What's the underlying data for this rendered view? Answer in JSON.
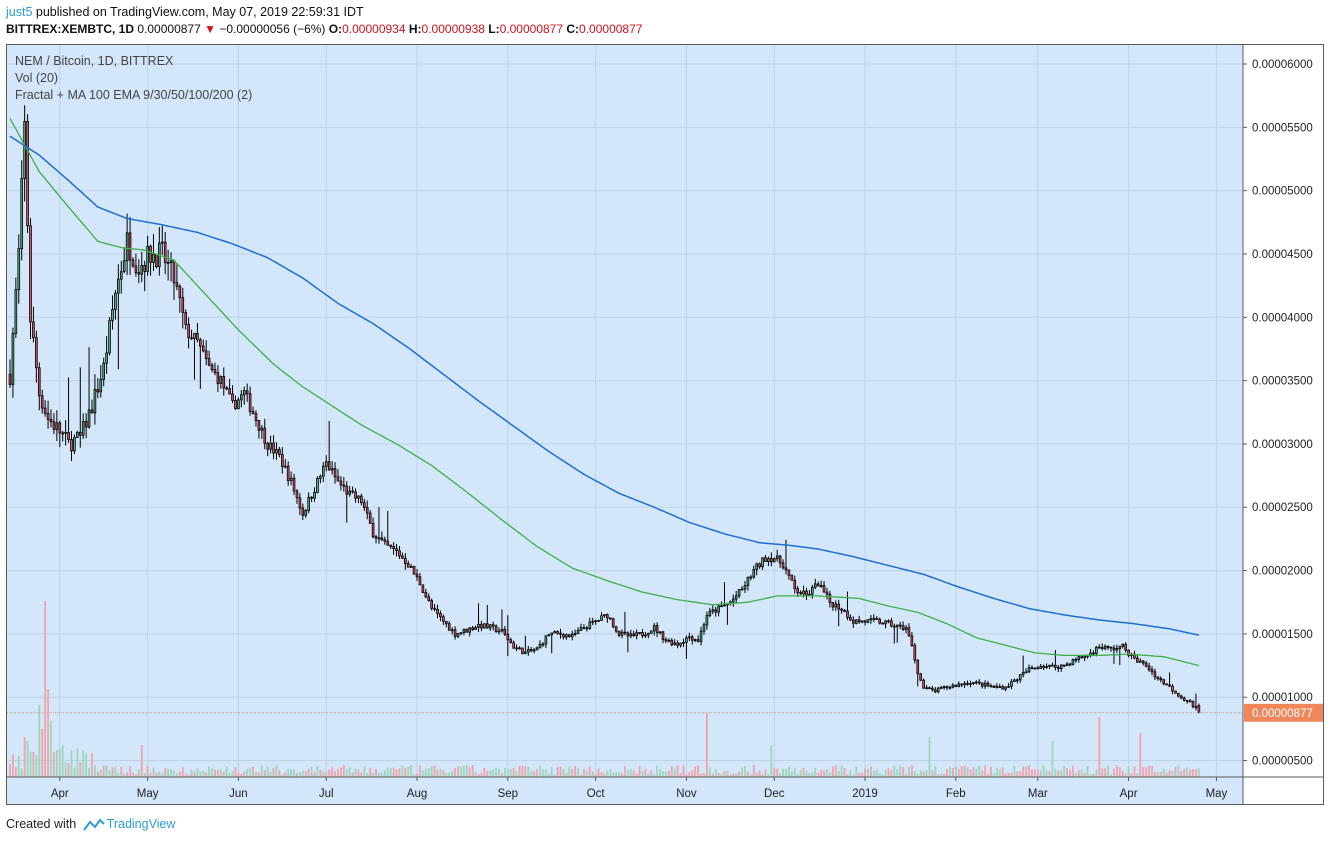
{
  "header": {
    "user": "just5",
    "published_text": "published on TradingView.com, May 07, 2019 22:59:31 IDT",
    "symbol": "BITTREX:XEMBTC, 1D",
    "last": "0.00000877",
    "change_arrow": "▼",
    "change": "−0.00000056 (−6%)",
    "o_label": "O:",
    "o": "0.00000934",
    "h_label": "H:",
    "h": "0.00000938",
    "l_label": "L:",
    "l": "0.00000877",
    "c_label": "C:",
    "c": "0.00000877"
  },
  "legend": {
    "series": "NEM / Bitcoin, 1D, BITTREX",
    "volume": "Vol (20)",
    "indicator": "Fractal + MA 100 EMA 9/30/50/100/200 (2)"
  },
  "footer": {
    "prefix": "Created with",
    "brand": "TradingView"
  },
  "colors": {
    "background": "#d3e6fa",
    "up": "#53b987",
    "down": "#eb4d5c",
    "candle_outline": "#000000",
    "ma_green": "#3fae49",
    "ma_blue": "#1e6fcf",
    "price_tag": "#f0875a"
  },
  "chart_data": {
    "type": "candlestick",
    "title": "NEM / Bitcoin, 1D, BITTREX",
    "ylim": [
      3.7e-06,
      6.15e-05
    ],
    "yticks": [
      "0.00000500",
      "0.00001000",
      "0.00001500",
      "0.00002000",
      "0.00002500",
      "0.00003000",
      "0.00003500",
      "0.00004000",
      "0.00004500",
      "0.00005000",
      "0.00005500",
      "0.00006000"
    ],
    "ytick_values": [
      5e-06,
      1e-05,
      1.5e-05,
      2e-05,
      2.5e-05,
      3e-05,
      3.5e-05,
      4e-05,
      4.5e-05,
      5e-05,
      5.5e-05,
      6e-05
    ],
    "xaxis_months": [
      {
        "label": "Apr",
        "day": 17
      },
      {
        "label": "May",
        "day": 47
      },
      {
        "label": "Jun",
        "day": 78
      },
      {
        "label": "Jul",
        "day": 108
      },
      {
        "label": "Aug",
        "day": 139
      },
      {
        "label": "Sep",
        "day": 170
      },
      {
        "label": "Oct",
        "day": 200
      },
      {
        "label": "Nov",
        "day": 231
      },
      {
        "label": "Dec",
        "day": 261
      },
      {
        "label": "2019",
        "day": 292
      },
      {
        "label": "Feb",
        "day": 323
      },
      {
        "label": "Mar",
        "day": 351
      },
      {
        "label": "Apr",
        "day": 382
      },
      {
        "label": "May",
        "day": 412
      }
    ],
    "total_days": 418,
    "last_price": "0.00000877",
    "price_anchors": [
      [
        0,
        3.55e-05
      ],
      [
        3,
        4.5e-05
      ],
      [
        5,
        5.5e-05
      ],
      [
        7,
        4e-05
      ],
      [
        10,
        3.4e-05
      ],
      [
        13,
        3.2e-05
      ],
      [
        17,
        3.1e-05
      ],
      [
        20,
        3e-05
      ],
      [
        24,
        3.05e-05
      ],
      [
        28,
        3.3e-05
      ],
      [
        32,
        3.6e-05
      ],
      [
        36,
        4.2e-05
      ],
      [
        40,
        4.6e-05
      ],
      [
        44,
        4.4e-05
      ],
      [
        48,
        4.5e-05
      ],
      [
        52,
        4.5e-05
      ],
      [
        56,
        4.3e-05
      ],
      [
        60,
        3.9e-05
      ],
      [
        64,
        3.8e-05
      ],
      [
        68,
        3.6e-05
      ],
      [
        72,
        3.5e-05
      ],
      [
        76,
        3.3e-05
      ],
      [
        80,
        3.4e-05
      ],
      [
        84,
        3.2e-05
      ],
      [
        88,
        3e-05
      ],
      [
        92,
        2.9e-05
      ],
      [
        96,
        2.7e-05
      ],
      [
        100,
        2.45e-05
      ],
      [
        104,
        2.65e-05
      ],
      [
        108,
        2.85e-05
      ],
      [
        112,
        2.7e-05
      ],
      [
        116,
        2.6e-05
      ],
      [
        120,
        2.55e-05
      ],
      [
        124,
        2.3e-05
      ],
      [
        128,
        2.2e-05
      ],
      [
        132,
        2.15e-05
      ],
      [
        136,
        2.05e-05
      ],
      [
        140,
        1.9e-05
      ],
      [
        144,
        1.7e-05
      ],
      [
        148,
        1.6e-05
      ],
      [
        152,
        1.5e-05
      ],
      [
        156,
        1.53e-05
      ],
      [
        160,
        1.57e-05
      ],
      [
        164,
        1.55e-05
      ],
      [
        168,
        1.52e-05
      ],
      [
        172,
        1.4e-05
      ],
      [
        176,
        1.35e-05
      ],
      [
        180,
        1.38e-05
      ],
      [
        184,
        1.5e-05
      ],
      [
        188,
        1.5e-05
      ],
      [
        192,
        1.48e-05
      ],
      [
        196,
        1.55e-05
      ],
      [
        200,
        1.6e-05
      ],
      [
        204,
        1.65e-05
      ],
      [
        208,
        1.5e-05
      ],
      [
        212,
        1.48e-05
      ],
      [
        216,
        1.5e-05
      ],
      [
        220,
        1.55e-05
      ],
      [
        224,
        1.45e-05
      ],
      [
        228,
        1.42e-05
      ],
      [
        232,
        1.48e-05
      ],
      [
        235,
        1.45e-05
      ],
      [
        238,
        1.65e-05
      ],
      [
        242,
        1.7e-05
      ],
      [
        246,
        1.75e-05
      ],
      [
        250,
        1.85e-05
      ],
      [
        254,
        2e-05
      ],
      [
        258,
        2.1e-05
      ],
      [
        261,
        2.1e-05
      ],
      [
        264,
        2.05e-05
      ],
      [
        268,
        1.85e-05
      ],
      [
        272,
        1.8e-05
      ],
      [
        276,
        1.9e-05
      ],
      [
        280,
        1.75e-05
      ],
      [
        284,
        1.7e-05
      ],
      [
        288,
        1.6e-05
      ],
      [
        292,
        1.6e-05
      ],
      [
        296,
        1.6e-05
      ],
      [
        300,
        1.58e-05
      ],
      [
        304,
        1.55e-05
      ],
      [
        306,
        1.55e-05
      ],
      [
        308,
        1.4e-05
      ],
      [
        310,
        1.2e-05
      ],
      [
        312,
        1.07e-05
      ],
      [
        316,
        1.05e-05
      ],
      [
        320,
        1.08e-05
      ],
      [
        324,
        1.1e-05
      ],
      [
        328,
        1.12e-05
      ],
      [
        332,
        1.1e-05
      ],
      [
        336,
        1.08e-05
      ],
      [
        340,
        1.08e-05
      ],
      [
        344,
        1.15e-05
      ],
      [
        348,
        1.22e-05
      ],
      [
        352,
        1.25e-05
      ],
      [
        356,
        1.24e-05
      ],
      [
        360,
        1.25e-05
      ],
      [
        364,
        1.3e-05
      ],
      [
        368,
        1.33e-05
      ],
      [
        372,
        1.4e-05
      ],
      [
        376,
        1.38e-05
      ],
      [
        380,
        1.4e-05
      ],
      [
        384,
        1.3e-05
      ],
      [
        388,
        1.25e-05
      ],
      [
        392,
        1.15e-05
      ],
      [
        396,
        1.08e-05
      ],
      [
        400,
        1e-05
      ],
      [
        403,
        9.6e-06
      ],
      [
        406,
        8.77e-06
      ]
    ],
    "ma_green": [
      [
        0,
        5.57e-05
      ],
      [
        10,
        5.15e-05
      ],
      [
        20,
        4.87e-05
      ],
      [
        30,
        4.6e-05
      ],
      [
        38,
        4.55e-05
      ],
      [
        46,
        4.53e-05
      ],
      [
        56,
        4.45e-05
      ],
      [
        66,
        4.2e-05
      ],
      [
        78,
        3.9e-05
      ],
      [
        90,
        3.63e-05
      ],
      [
        100,
        3.45e-05
      ],
      [
        110,
        3.3e-05
      ],
      [
        120,
        3.15e-05
      ],
      [
        132,
        3e-05
      ],
      [
        144,
        2.83e-05
      ],
      [
        156,
        2.62e-05
      ],
      [
        168,
        2.4e-05
      ],
      [
        180,
        2.19e-05
      ],
      [
        192,
        2.02e-05
      ],
      [
        204,
        1.92e-05
      ],
      [
        216,
        1.83e-05
      ],
      [
        228,
        1.77e-05
      ],
      [
        240,
        1.73e-05
      ],
      [
        252,
        1.75e-05
      ],
      [
        262,
        1.8e-05
      ],
      [
        276,
        1.8e-05
      ],
      [
        290,
        1.78e-05
      ],
      [
        300,
        1.72e-05
      ],
      [
        310,
        1.67e-05
      ],
      [
        320,
        1.58e-05
      ],
      [
        330,
        1.47e-05
      ],
      [
        340,
        1.41e-05
      ],
      [
        350,
        1.35e-05
      ],
      [
        360,
        1.33e-05
      ],
      [
        372,
        1.33e-05
      ],
      [
        382,
        1.34e-05
      ],
      [
        394,
        1.32e-05
      ],
      [
        406,
        1.25e-05
      ]
    ],
    "ma_blue": [
      [
        0,
        5.43e-05
      ],
      [
        10,
        5.28e-05
      ],
      [
        20,
        5.08e-05
      ],
      [
        30,
        4.87e-05
      ],
      [
        40,
        4.78e-05
      ],
      [
        52,
        4.73e-05
      ],
      [
        64,
        4.67e-05
      ],
      [
        76,
        4.58e-05
      ],
      [
        88,
        4.47e-05
      ],
      [
        100,
        4.31e-05
      ],
      [
        112,
        4.11e-05
      ],
      [
        124,
        3.95e-05
      ],
      [
        136,
        3.76e-05
      ],
      [
        148,
        3.55e-05
      ],
      [
        160,
        3.34e-05
      ],
      [
        172,
        3.14e-05
      ],
      [
        184,
        2.94e-05
      ],
      [
        196,
        2.76e-05
      ],
      [
        208,
        2.61e-05
      ],
      [
        220,
        2.5e-05
      ],
      [
        232,
        2.38e-05
      ],
      [
        244,
        2.29e-05
      ],
      [
        256,
        2.22e-05
      ],
      [
        266,
        2.2e-05
      ],
      [
        276,
        2.17e-05
      ],
      [
        288,
        2.11e-05
      ],
      [
        300,
        2.04e-05
      ],
      [
        312,
        1.97e-05
      ],
      [
        324,
        1.87e-05
      ],
      [
        336,
        1.78e-05
      ],
      [
        348,
        1.7e-05
      ],
      [
        360,
        1.65e-05
      ],
      [
        372,
        1.61e-05
      ],
      [
        384,
        1.58e-05
      ],
      [
        396,
        1.54e-05
      ],
      [
        406,
        1.49e-05
      ]
    ],
    "volume_spikes": [
      [
        5,
        0.5
      ],
      [
        6,
        0.45
      ],
      [
        10,
        0.9
      ],
      [
        11,
        0.6
      ],
      [
        12,
        2.2
      ],
      [
        13,
        1.1
      ],
      [
        14,
        0.7
      ],
      [
        17,
        0.35
      ],
      [
        45,
        0.4
      ],
      [
        260,
        0.4
      ],
      [
        238,
        0.8
      ],
      [
        314,
        0.5
      ],
      [
        356,
        0.45
      ],
      [
        372,
        0.75
      ],
      [
        386,
        0.55
      ]
    ]
  }
}
